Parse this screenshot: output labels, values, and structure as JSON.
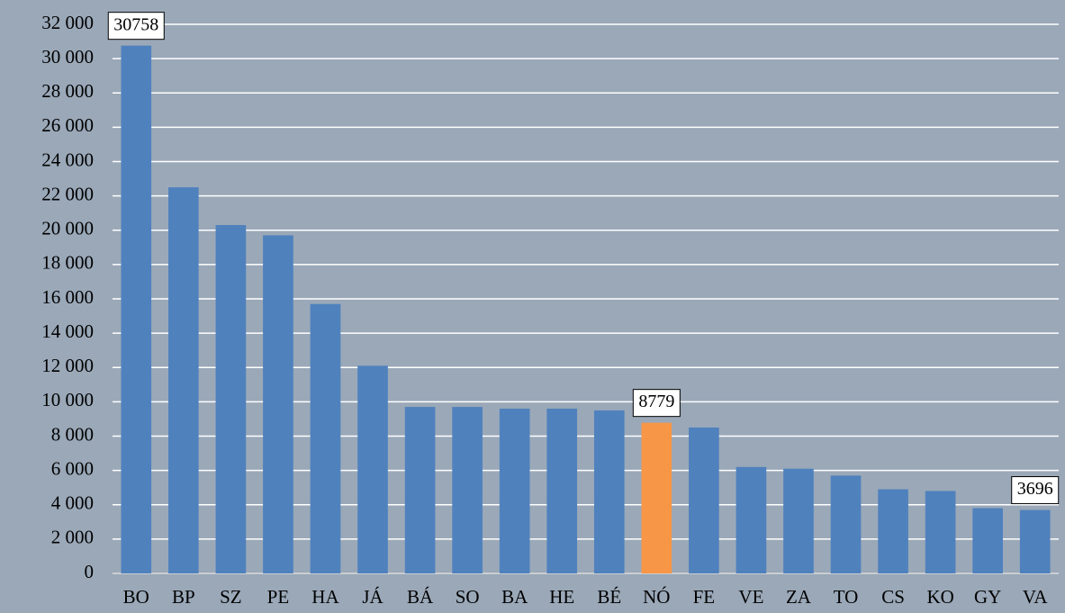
{
  "chart_data": {
    "type": "bar",
    "categories": [
      "BO",
      "BP",
      "SZ",
      "PE",
      "HA",
      "JÁ",
      "BÁ",
      "SO",
      "BA",
      "HE",
      "BÉ",
      "NÓ",
      "FE",
      "VE",
      "ZA",
      "TO",
      "CS",
      "KO",
      "GY",
      "VA"
    ],
    "values": [
      30758,
      22500,
      20300,
      19700,
      15700,
      12100,
      9700,
      9700,
      9600,
      9600,
      9500,
      8779,
      8500,
      6200,
      6100,
      5700,
      4900,
      4800,
      3800,
      3696
    ],
    "value_labels": [
      "30758",
      null,
      null,
      null,
      null,
      null,
      null,
      null,
      null,
      null,
      null,
      "8779",
      null,
      null,
      null,
      null,
      null,
      null,
      null,
      "3696"
    ],
    "colors": [
      "#4f81bd",
      "#4f81bd",
      "#4f81bd",
      "#4f81bd",
      "#4f81bd",
      "#4f81bd",
      "#4f81bd",
      "#4f81bd",
      "#4f81bd",
      "#4f81bd",
      "#4f81bd",
      "#f79646",
      "#4f81bd",
      "#4f81bd",
      "#4f81bd",
      "#4f81bd",
      "#4f81bd",
      "#4f81bd",
      "#4f81bd",
      "#4f81bd"
    ],
    "ylim": [
      0,
      32000
    ],
    "yticks": [
      0,
      {
        "value": 2000,
        "label": "2 000"
      },
      {
        "value": 4000,
        "label": "4 000"
      },
      {
        "value": 6000,
        "label": "6 000"
      },
      {
        "value": 8000,
        "label": "8 000"
      },
      {
        "value": 10000,
        "label": "10 000"
      },
      {
        "value": 12000,
        "label": "12 000"
      },
      {
        "value": 14000,
        "label": "14 000"
      },
      {
        "value": 16000,
        "label": "16 000"
      },
      {
        "value": 18000,
        "label": "18 000"
      },
      {
        "value": 20000,
        "label": "20 000"
      },
      {
        "value": 22000,
        "label": "22 000"
      },
      {
        "value": 24000,
        "label": "24 000"
      },
      {
        "value": 26000,
        "label": "26 000"
      },
      {
        "value": 28000,
        "label": "28 000"
      },
      {
        "value": 30000,
        "label": "30 000"
      },
      {
        "value": 32000,
        "label": "32 000"
      }
    ],
    "grid": true
  }
}
